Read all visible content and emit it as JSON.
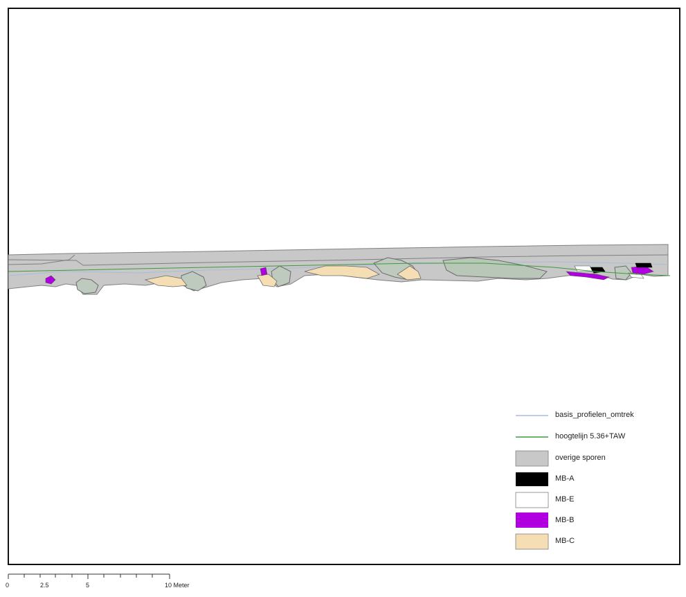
{
  "legend": {
    "items": [
      {
        "label": "basis_profielen_omtrek",
        "symbol": "line",
        "color": "#a9bcd8"
      },
      {
        "label": "hoogtelijn 5.36+TAW",
        "symbol": "line",
        "color": "#3c9a3c"
      },
      {
        "label": "overige sporen",
        "symbol": "fill",
        "color": "#c8c8c8"
      },
      {
        "label": "MB-A",
        "symbol": "fill",
        "color": "#000000"
      },
      {
        "label": "MB-E",
        "symbol": "fill",
        "color": "#ffffff"
      },
      {
        "label": "MB-B",
        "symbol": "fill",
        "color": "#b000e0"
      },
      {
        "label": "MB-C",
        "symbol": "fill",
        "color": "#f5deb3"
      }
    ]
  },
  "scale_bar": {
    "labels": [
      "0",
      "2.5",
      "5",
      "10 Meter"
    ],
    "unit": "Meter"
  },
  "colors": {
    "frame": "#111111",
    "overige_sporen": "#c8c8c8",
    "overige_sporen_stroke": "#808080",
    "mb_a": "#000000",
    "mb_b": "#b000e0",
    "mb_c": "#f5deb3",
    "mb_e": "#ffffff",
    "contour": "#3c9a3c",
    "profile_outline": "#a9bcd8"
  }
}
